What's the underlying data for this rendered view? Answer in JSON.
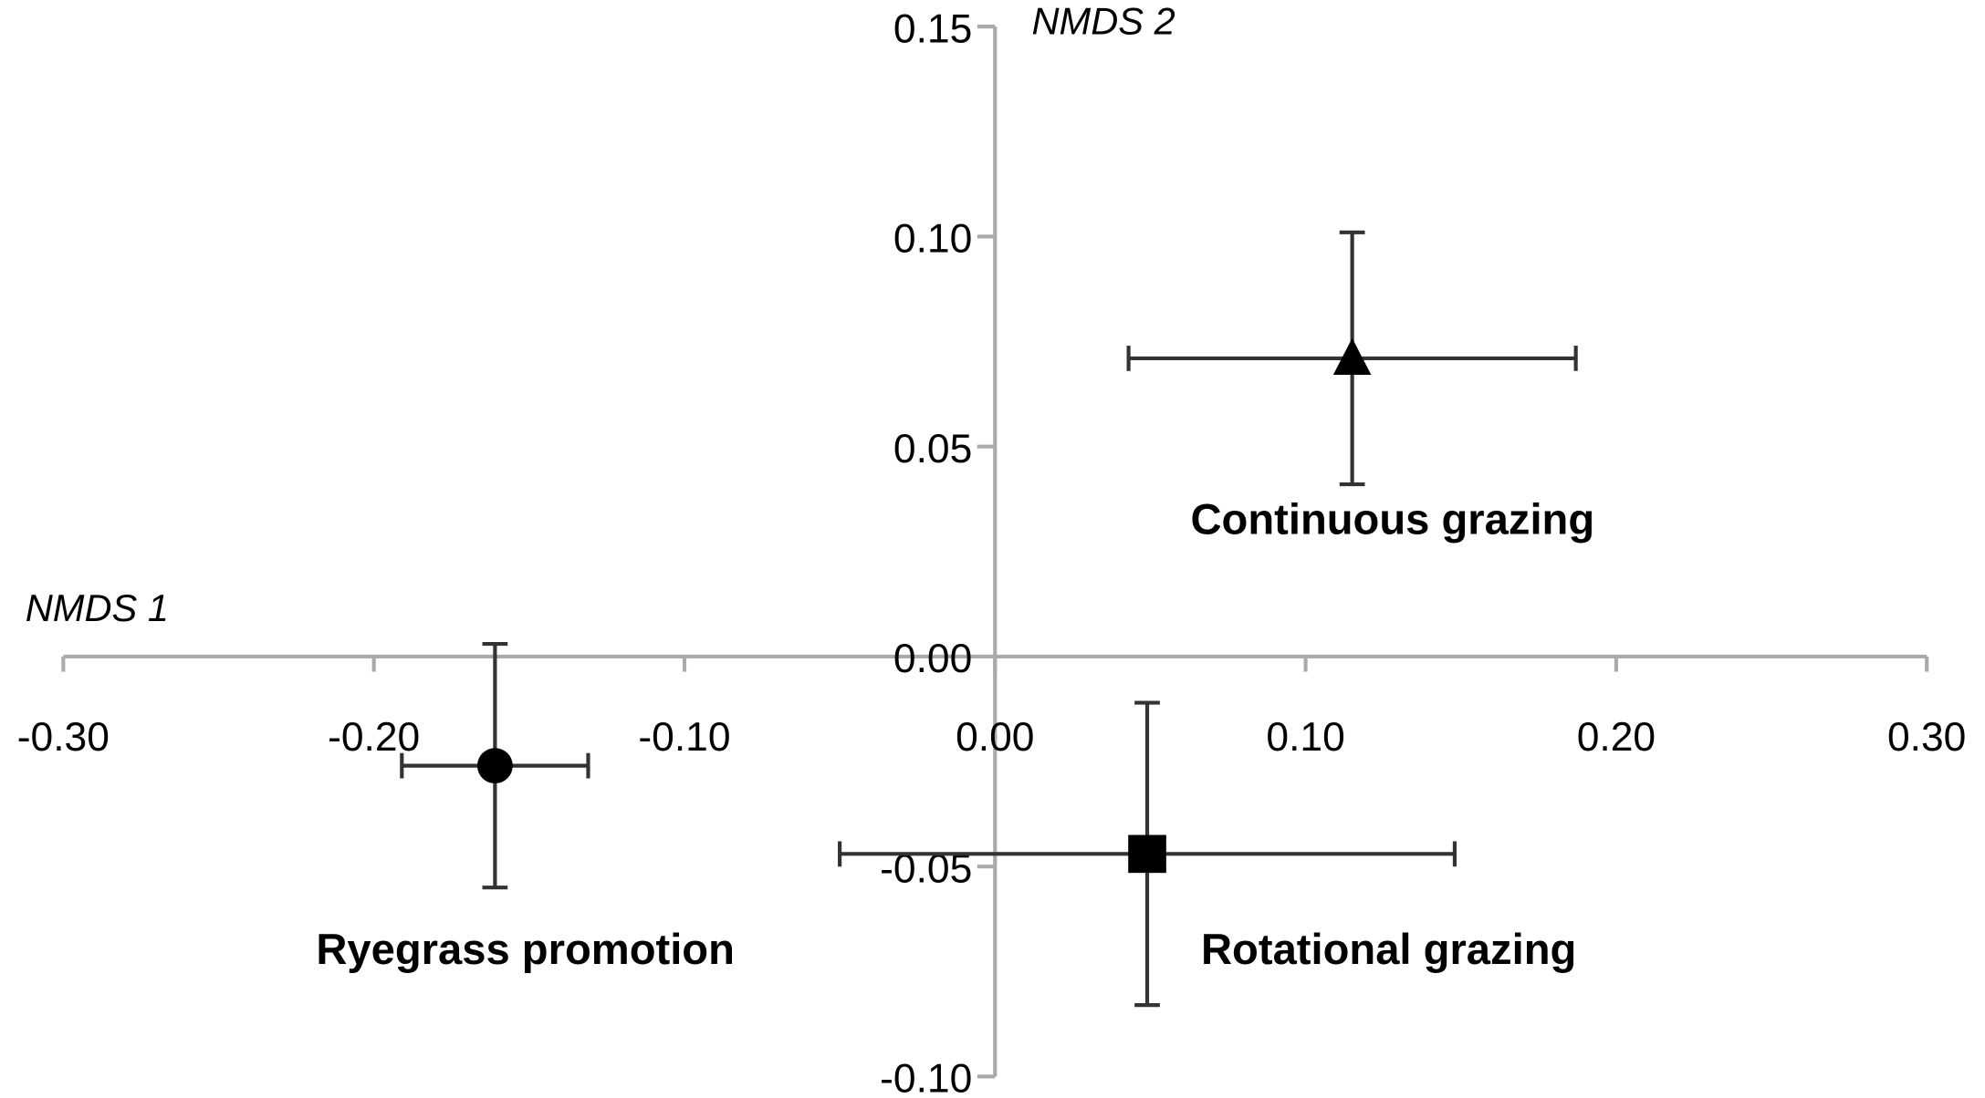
{
  "chart_data": {
    "type": "scatter",
    "xlabel": "NMDS 1",
    "ylabel": "NMDS 2",
    "xlim": [
      -0.3,
      0.3
    ],
    "ylim": [
      -0.1,
      0.15
    ],
    "xticks": [
      {
        "value": -0.3,
        "label": "-0.30"
      },
      {
        "value": -0.2,
        "label": "-0.20"
      },
      {
        "value": -0.1,
        "label": "-0.10"
      },
      {
        "value": 0,
        "label": "0.00"
      },
      {
        "value": 0.1,
        "label": "0.10"
      },
      {
        "value": 0.2,
        "label": "0.20"
      },
      {
        "value": 0.3,
        "label": "0.30"
      }
    ],
    "yticks": [
      {
        "value": -0.1,
        "label": "-0.10"
      },
      {
        "value": -0.05,
        "label": "-0.05"
      },
      {
        "value": 0,
        "label": "0.00"
      },
      {
        "value": 0.05,
        "label": "0.05"
      },
      {
        "value": 0.1,
        "label": "0.10"
      },
      {
        "value": 0.15,
        "label": "0.15"
      }
    ],
    "series": [
      {
        "name": "Continuous grazing",
        "marker": "triangle",
        "color": "#000000",
        "x": [
          0.115
        ],
        "y": [
          0.071
        ],
        "xerr": [
          0.072
        ],
        "yerr": [
          0.03
        ]
      },
      {
        "name": "Ryegrass promotion",
        "marker": "circle",
        "color": "#000000",
        "x": [
          -0.161
        ],
        "y": [
          -0.026
        ],
        "xerr": [
          0.03
        ],
        "yerr": [
          0.029
        ]
      },
      {
        "name": "Rotational grazing",
        "marker": "square",
        "color": "#000000",
        "x": [
          0.049
        ],
        "y": [
          -0.047
        ],
        "xerr": [
          0.099
        ],
        "yerr": [
          0.036
        ]
      }
    ]
  }
}
